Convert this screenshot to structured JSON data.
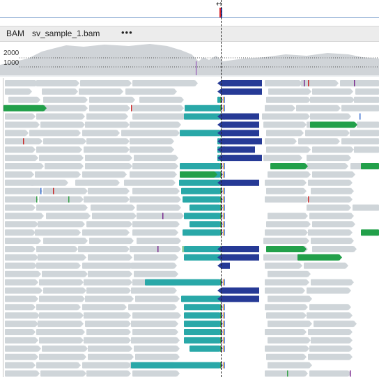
{
  "ruler": {
    "arrow_glyph": "↔"
  },
  "track": {
    "type_label": "BAM",
    "file_name": "sv_sample_1.bam",
    "menu_glyph": "•••"
  },
  "coverage": {
    "scale_labels": [
      "2000",
      "1000"
    ],
    "colors": {
      "fill": "#d0d4d8",
      "dotted_line": "#555555",
      "mismatch_bar": "#8a3fb0"
    }
  },
  "colors": {
    "read": "#cfd5d9",
    "split_left": "#29a8a8",
    "split_right": "#263a96",
    "discordant": "#22a04a",
    "mismatch": "#7b2a8f",
    "snv_red": "#c92a2a",
    "snv_blue": "#3a6fd1",
    "snv_green": "#37a34a",
    "snv_orange": "#d98b2a"
  }
}
